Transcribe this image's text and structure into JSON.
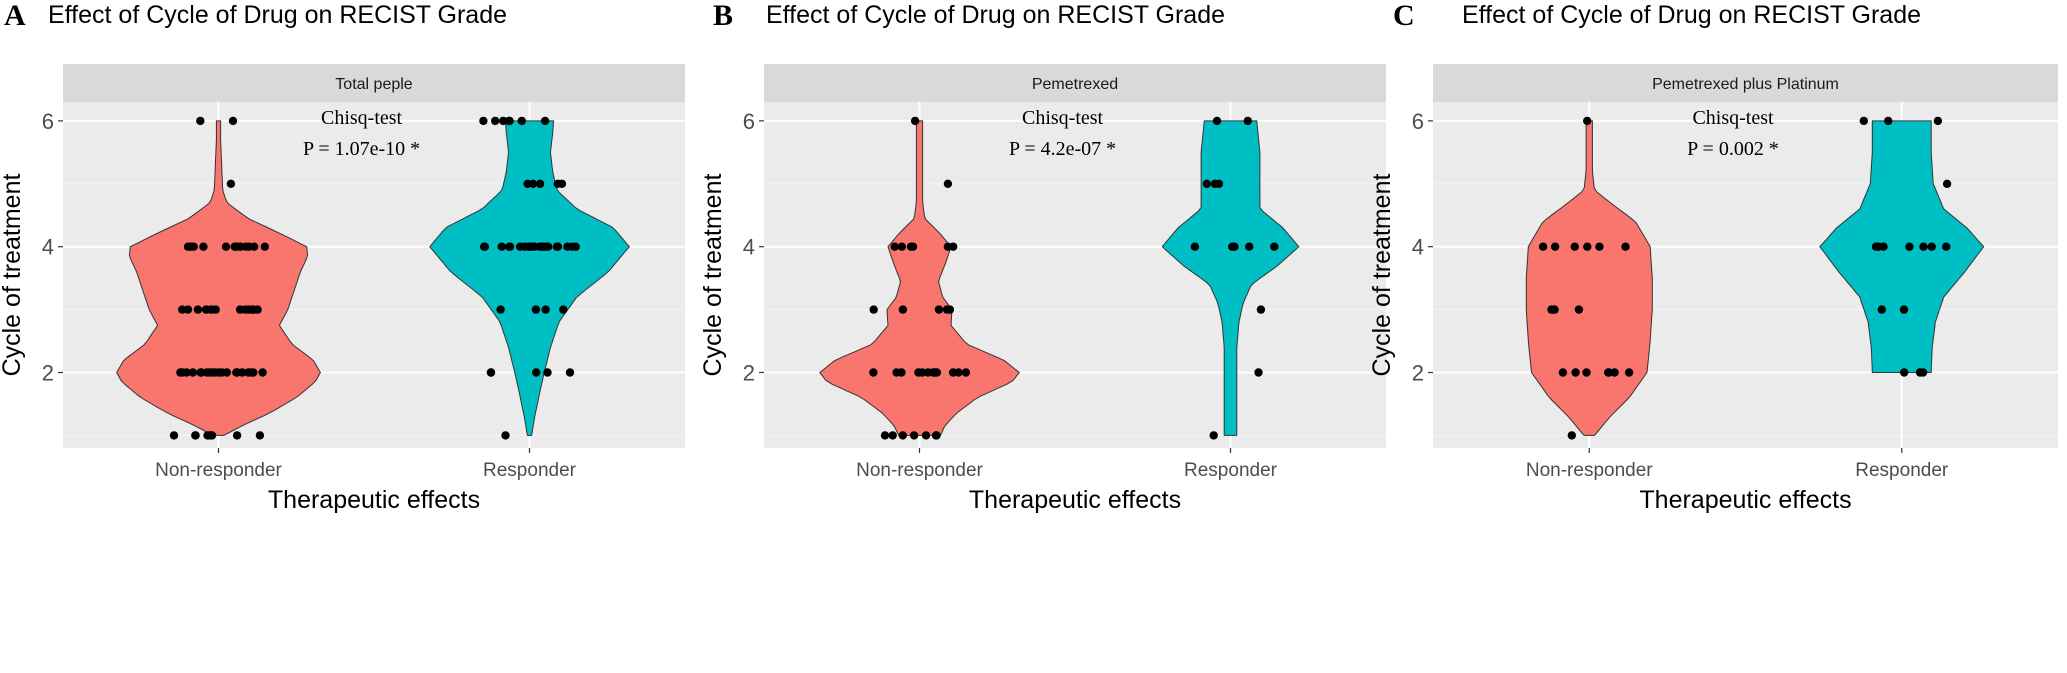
{
  "chart_data": [
    {
      "type": "violin",
      "panel_letter": "A",
      "title": "Effect of Cycle of Drug on RECIST Grade",
      "facet_label": "Total peple",
      "xlabel": "Therapeutic effects",
      "ylabel": "Cycle of treatment",
      "categories": [
        "Non-responder",
        "Responder"
      ],
      "colors": [
        "#F8766D",
        "#00BFC4"
      ],
      "ylim": [
        0.8,
        6.3
      ],
      "yticks": [
        2,
        4,
        6
      ],
      "annotation": {
        "test": "Chisq-test",
        "p_label": "P  = 1.07e-10 *"
      },
      "violins": [
        {
          "range": [
            1,
            6
          ],
          "profile": [
            [
              1,
              0.05
            ],
            [
              1.15,
              0.22
            ],
            [
              1.35,
              0.48
            ],
            [
              1.6,
              0.74
            ],
            [
              1.85,
              0.92
            ],
            [
              2,
              0.97
            ],
            [
              2.2,
              0.9
            ],
            [
              2.45,
              0.7
            ],
            [
              2.75,
              0.58
            ],
            [
              3,
              0.66
            ],
            [
              3.3,
              0.72
            ],
            [
              3.6,
              0.78
            ],
            [
              3.85,
              0.85
            ],
            [
              4,
              0.84
            ],
            [
              4.2,
              0.6
            ],
            [
              4.45,
              0.28
            ],
            [
              4.7,
              0.08
            ],
            [
              4.9,
              0.04
            ],
            [
              5.3,
              0.03
            ],
            [
              5.7,
              0.02
            ],
            [
              6,
              0.02
            ]
          ]
        },
        {
          "range": [
            1,
            6
          ],
          "profile": [
            [
              1,
              0.02
            ],
            [
              1.3,
              0.05
            ],
            [
              1.7,
              0.1
            ],
            [
              2,
              0.14
            ],
            [
              2.4,
              0.2
            ],
            [
              2.8,
              0.28
            ],
            [
              3.2,
              0.45
            ],
            [
              3.6,
              0.75
            ],
            [
              4,
              0.95
            ],
            [
              4.3,
              0.8
            ],
            [
              4.6,
              0.45
            ],
            [
              4.9,
              0.26
            ],
            [
              5.2,
              0.22
            ],
            [
              5.5,
              0.2
            ],
            [
              5.8,
              0.22
            ],
            [
              6,
              0.23
            ]
          ]
        }
      ],
      "points": [
        {
          "category": "Non-responder",
          "y": [
            6,
            6,
            5,
            4,
            4,
            4,
            4,
            4,
            4,
            4,
            4,
            4,
            4,
            4,
            4,
            4,
            4,
            3,
            3,
            3,
            3,
            3,
            3,
            3,
            3,
            3,
            3,
            3,
            3,
            3,
            3,
            3,
            2,
            2,
            2,
            2,
            2,
            2,
            2,
            2,
            2,
            2,
            2,
            2,
            2,
            2,
            2,
            2,
            2,
            2,
            2,
            2,
            1,
            1,
            1,
            1,
            1,
            1,
            1,
            1,
            1
          ]
        },
        {
          "category": "Responder",
          "y": [
            6,
            6,
            6,
            6,
            6,
            6,
            6,
            5,
            5,
            5,
            5,
            5,
            4,
            4,
            4,
            4,
            4,
            4,
            4,
            4,
            4,
            4,
            4,
            4,
            4,
            4,
            4,
            4,
            4,
            4,
            4,
            4,
            4,
            4,
            4,
            3,
            3,
            3,
            3,
            2,
            2,
            2,
            2,
            2,
            1
          ]
        }
      ]
    },
    {
      "type": "violin",
      "panel_letter": "B",
      "title": "Effect of Cycle of Drug on RECIST Grade",
      "facet_label": "Pemetrexed",
      "xlabel": "Therapeutic effects",
      "ylabel": "Cycle of treatment",
      "categories": [
        "Non-responder",
        "Responder"
      ],
      "colors": [
        "#F8766D",
        "#00BFC4"
      ],
      "ylim": [
        0.8,
        6.3
      ],
      "yticks": [
        2,
        4,
        6
      ],
      "annotation": {
        "test": "Chisq-test",
        "p_label": "P  = 4.2e-07 *"
      },
      "violins": [
        {
          "range": [
            1,
            6
          ],
          "profile": [
            [
              1,
              0.2
            ],
            [
              1.15,
              0.24
            ],
            [
              1.35,
              0.35
            ],
            [
              1.6,
              0.55
            ],
            [
              1.85,
              0.88
            ],
            [
              2,
              0.95
            ],
            [
              2.2,
              0.8
            ],
            [
              2.45,
              0.45
            ],
            [
              2.75,
              0.3
            ],
            [
              3,
              0.31
            ],
            [
              3.2,
              0.22
            ],
            [
              3.45,
              0.18
            ],
            [
              3.75,
              0.25
            ],
            [
              4,
              0.3
            ],
            [
              4.2,
              0.2
            ],
            [
              4.45,
              0.05
            ],
            [
              4.7,
              0.03
            ],
            [
              5.2,
              0.03
            ],
            [
              6,
              0.03
            ]
          ]
        },
        {
          "range": [
            1,
            6
          ],
          "profile": [
            [
              1,
              0.06
            ],
            [
              1.5,
              0.06
            ],
            [
              2,
              0.06
            ],
            [
              2.4,
              0.06
            ],
            [
              2.8,
              0.08
            ],
            [
              3.1,
              0.12
            ],
            [
              3.4,
              0.2
            ],
            [
              3.7,
              0.45
            ],
            [
              4,
              0.65
            ],
            [
              4.3,
              0.5
            ],
            [
              4.6,
              0.28
            ],
            [
              5,
              0.28
            ],
            [
              5.5,
              0.28
            ],
            [
              6,
              0.25
            ]
          ]
        }
      ],
      "points": [
        {
          "category": "Non-responder",
          "y": [
            6,
            5,
            4,
            4,
            4,
            4,
            4,
            4,
            3,
            3,
            3,
            3,
            3,
            2,
            2,
            2,
            2,
            2,
            2,
            2,
            2,
            2,
            2,
            2,
            2,
            2,
            1,
            1,
            1,
            1,
            1,
            1,
            1
          ]
        },
        {
          "category": "Responder",
          "y": [
            6,
            6,
            5,
            5,
            5,
            4,
            4,
            4,
            4,
            4,
            3,
            2,
            1
          ]
        }
      ]
    },
    {
      "type": "violin",
      "panel_letter": "C",
      "title": "Effect of Cycle of Drug on RECIST Grade",
      "facet_label": "Pemetrexed plus Platinum",
      "xlabel": "Therapeutic effects",
      "ylabel": "Cycle of treatment",
      "categories": [
        "Non-responder",
        "Responder"
      ],
      "colors": [
        "#F8766D",
        "#00BFC4"
      ],
      "ylim": [
        0.8,
        6.3
      ],
      "yticks": [
        2,
        4,
        6
      ],
      "annotation": {
        "test": "Chisq-test",
        "p_label": "P  = 0.002 *"
      },
      "violins": [
        {
          "range": [
            1,
            6
          ],
          "profile": [
            [
              1,
              0.05
            ],
            [
              1.3,
              0.2
            ],
            [
              1.6,
              0.38
            ],
            [
              2,
              0.55
            ],
            [
              2.5,
              0.58
            ],
            [
              3,
              0.6
            ],
            [
              3.5,
              0.6
            ],
            [
              4,
              0.58
            ],
            [
              4.4,
              0.44
            ],
            [
              4.7,
              0.2
            ],
            [
              4.9,
              0.05
            ],
            [
              5.2,
              0.03
            ],
            [
              6,
              0.03
            ]
          ]
        },
        {
          "range": [
            2,
            6
          ],
          "profile": [
            [
              2,
              0.28
            ],
            [
              2.4,
              0.29
            ],
            [
              2.8,
              0.32
            ],
            [
              3.2,
              0.4
            ],
            [
              3.6,
              0.6
            ],
            [
              4,
              0.78
            ],
            [
              4.3,
              0.62
            ],
            [
              4.6,
              0.4
            ],
            [
              5,
              0.3
            ],
            [
              5.5,
              0.28
            ],
            [
              6,
              0.28
            ]
          ]
        }
      ],
      "points": [
        {
          "category": "Non-responder",
          "y": [
            6,
            4,
            4,
            4,
            4,
            4,
            4,
            3,
            3,
            3,
            3,
            3,
            2,
            2,
            2,
            2,
            2,
            2,
            2,
            1
          ]
        },
        {
          "category": "Responder",
          "y": [
            6,
            6,
            6,
            5,
            4,
            4,
            4,
            4,
            4,
            4,
            4,
            4,
            3,
            3,
            2,
            2,
            2
          ]
        }
      ]
    }
  ]
}
